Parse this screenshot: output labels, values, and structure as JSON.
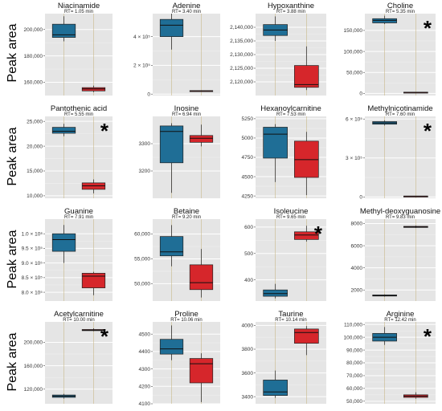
{
  "ylabel": "Peak area",
  "colors": {
    "group1": "#1f6e96",
    "group2": "#d6262b",
    "panel_bg": "#e5e5e5",
    "grid": "#ffffff",
    "grid_minor": "#efefef",
    "vgrid": "#c9b98a"
  },
  "chart_data": [
    {
      "type": "box",
      "title": "Niacinamide",
      "subtitle": "RT= 1.05 min",
      "ylabel": "Peak area",
      "ylim": [
        150000,
        212000
      ],
      "ticks": [
        {
          "v": 160000,
          "label": "160,000"
        },
        {
          "v": 180000,
          "label": "180,000"
        },
        {
          "v": 200000,
          "label": "200,000"
        }
      ],
      "significant": false,
      "star": "",
      "boxes": [
        {
          "min": 191000,
          "q1": 194000,
          "median": 196000,
          "q3": 204000,
          "max": 210000
        },
        {
          "min": 152500,
          "q1": 153500,
          "median": 155000,
          "q3": 156000,
          "max": 157500
        }
      ]
    },
    {
      "type": "box",
      "title": "Adenine",
      "subtitle": "RT= 3.40 min",
      "ylabel": "Peak area",
      "ylim": [
        -10000,
        560000
      ],
      "ticks": [
        {
          "v": 0,
          "label": "0"
        },
        {
          "v": 200000,
          "label": "2 × 10⁵"
        },
        {
          "v": 400000,
          "label": "4 × 10⁵"
        }
      ],
      "significant": false,
      "star": "",
      "boxes": [
        {
          "min": 310000,
          "q1": 400000,
          "median": 480000,
          "q3": 520000,
          "max": 560000
        },
        {
          "min": 18000,
          "q1": 20000,
          "median": 22000,
          "q3": 24000,
          "max": 26000
        }
      ]
    },
    {
      "type": "box",
      "title": "Hypoxanthine",
      "subtitle": "RT= 3.88 min",
      "ylabel": "Peak area",
      "ylim": [
        2115000,
        2145000
      ],
      "ticks": [
        {
          "v": 2120000,
          "label": "2,120,000"
        },
        {
          "v": 2125000,
          "label": "2,125,000"
        },
        {
          "v": 2130000,
          "label": "2,130,000"
        },
        {
          "v": 2135000,
          "label": "2,135,000"
        },
        {
          "v": 2140000,
          "label": "2,140,000"
        }
      ],
      "significant": false,
      "star": "",
      "boxes": [
        {
          "min": 2135000,
          "q1": 2137000,
          "median": 2139000,
          "q3": 2141000,
          "max": 2144000
        },
        {
          "min": 2117000,
          "q1": 2118000,
          "median": 2119000,
          "q3": 2126000,
          "max": 2133000
        }
      ]
    },
    {
      "type": "box",
      "title": "Choline",
      "subtitle": "RT= 5.35 min",
      "ylabel": "Peak area",
      "ylim": [
        -5000,
        190000
      ],
      "ticks": [
        {
          "v": 0,
          "label": "0"
        },
        {
          "v": 50000,
          "label": "50,000"
        },
        {
          "v": 100000,
          "label": "100,000"
        },
        {
          "v": 150000,
          "label": "150,000"
        }
      ],
      "significant": true,
      "star": "*",
      "boxes": [
        {
          "min": 165000,
          "q1": 168000,
          "median": 174000,
          "q3": 178000,
          "max": 185000
        },
        {
          "min": 1500,
          "q1": 2000,
          "median": 2500,
          "q3": 3000,
          "max": 3500
        }
      ]
    },
    {
      "type": "box",
      "title": "Pantothenic acid",
      "subtitle": "RT= 5.55 min",
      "ylabel": "Peak area",
      "ylim": [
        9500,
        26000
      ],
      "ticks": [
        {
          "v": 10000,
          "label": "10,000"
        },
        {
          "v": 15000,
          "label": "15,000"
        },
        {
          "v": 20000,
          "label": "20,000"
        },
        {
          "v": 25000,
          "label": "25,000"
        }
      ],
      "significant": true,
      "star": "*",
      "boxes": [
        {
          "min": 22000,
          "q1": 22600,
          "median": 23000,
          "q3": 23800,
          "max": 24500
        },
        {
          "min": 10500,
          "q1": 11300,
          "median": 12000,
          "q3": 12600,
          "max": 13300
        }
      ]
    },
    {
      "type": "box",
      "title": "Inosine",
      "subtitle": "RT= 6.94 min",
      "ylabel": "Peak area",
      "ylim": [
        3100,
        3400
      ],
      "ticks": [
        {
          "v": 3200,
          "label": "3200"
        },
        {
          "v": 3300,
          "label": "3300"
        }
      ],
      "significant": false,
      "star": "",
      "boxes": [
        {
          "min": 3120,
          "q1": 3230,
          "median": 3345,
          "q3": 3365,
          "max": 3375
        },
        {
          "min": 3290,
          "q1": 3305,
          "median": 3320,
          "q3": 3330,
          "max": 3370
        }
      ]
    },
    {
      "type": "box",
      "title": "Hexanoylcarnitine",
      "subtitle": "RT= 7.53 min",
      "ylabel": "Peak area",
      "ylim": [
        4220,
        5280
      ],
      "ticks": [
        {
          "v": 4250,
          "label": "4250"
        },
        {
          "v": 4500,
          "label": "4500"
        },
        {
          "v": 4750,
          "label": "4750"
        },
        {
          "v": 5000,
          "label": "5000"
        },
        {
          "v": 5250,
          "label": "5250"
        }
      ],
      "significant": false,
      "star": "",
      "boxes": [
        {
          "min": 4430,
          "q1": 4740,
          "median": 5050,
          "q3": 5140,
          "max": 5180
        },
        {
          "min": 4260,
          "q1": 4490,
          "median": 4720,
          "q3": 4960,
          "max": 5080
        }
      ]
    },
    {
      "type": "box",
      "title": "Methylnicotinamide",
      "subtitle": "RT= 7.60 min",
      "ylabel": "Peak area",
      "ylim": [
        -10000,
        620000
      ],
      "ticks": [
        {
          "v": 0,
          "label": "0"
        },
        {
          "v": 300000,
          "label": "3 × 10⁵"
        },
        {
          "v": 600000,
          "label": "6 × 10⁵"
        }
      ],
      "significant": true,
      "star": "*",
      "boxes": [
        {
          "min": 550000,
          "q1": 560000,
          "median": 570000,
          "q3": 580000,
          "max": 590000
        },
        {
          "min": 4000,
          "q1": 5000,
          "median": 6000,
          "q3": 7000,
          "max": 8000
        }
      ]
    },
    {
      "type": "box",
      "title": "Guanine",
      "subtitle": "RT= 7.91 min",
      "ylabel": "Peak area",
      "ylim": [
        770000,
        1050000
      ],
      "ticks": [
        {
          "v": 800000,
          "label": "8.0 × 10⁵"
        },
        {
          "v": 850000,
          "label": "8.5 × 10⁵"
        },
        {
          "v": 900000,
          "label": "9.0 × 10⁵"
        },
        {
          "v": 950000,
          "label": "9.5 × 10⁵"
        },
        {
          "v": 1000000,
          "label": "1.0 × 10⁶"
        }
      ],
      "significant": false,
      "star": "",
      "boxes": [
        {
          "min": 900000,
          "q1": 940000,
          "median": 980000,
          "q3": 1000000,
          "max": 1030000
        },
        {
          "min": 790000,
          "q1": 815000,
          "median": 855000,
          "q3": 865000,
          "max": 870000
        }
      ]
    },
    {
      "type": "box",
      "title": "Betaine",
      "subtitle": "RT= 9.20 min",
      "ylabel": "Peak area",
      "ylim": [
        46500,
        63000
      ],
      "ticks": [
        {
          "v": 50000,
          "label": "50,000"
        },
        {
          "v": 55000,
          "label": "55,000"
        },
        {
          "v": 60000,
          "label": "60,000"
        }
      ],
      "significant": false,
      "star": "",
      "boxes": [
        {
          "min": 53500,
          "q1": 55600,
          "median": 56400,
          "q3": 59500,
          "max": 61800
        },
        {
          "min": 47200,
          "q1": 48800,
          "median": 50200,
          "q3": 53800,
          "max": 57000
        }
      ]
    },
    {
      "type": "box",
      "title": "Isoleucine",
      "subtitle": "RT= 9.65 min",
      "ylabel": "Peak area",
      "ylim": [
        320,
        630
      ],
      "ticks": [
        {
          "v": 400,
          "label": "400"
        },
        {
          "v": 500,
          "label": "500"
        },
        {
          "v": 600,
          "label": "600"
        }
      ],
      "significant": true,
      "star": "*",
      "boxes": [
        {
          "min": 330,
          "q1": 338,
          "median": 348,
          "q3": 362,
          "max": 385
        },
        {
          "min": 545,
          "q1": 553,
          "median": 570,
          "q3": 582,
          "max": 605
        }
      ]
    },
    {
      "type": "box",
      "title": "Methyl-deoxyguanosine",
      "subtitle": "RT= 9.83 min",
      "ylabel": "Peak area",
      "ylim": [
        1000,
        8400
      ],
      "ticks": [
        {
          "v": 2000,
          "label": "2000"
        },
        {
          "v": 4000,
          "label": "4000"
        },
        {
          "v": 6000,
          "label": "6000"
        },
        {
          "v": 8000,
          "label": "8000"
        }
      ],
      "significant": false,
      "star": "",
      "boxes": [
        {
          "min": 1400,
          "q1": 1450,
          "median": 1500,
          "q3": 1550,
          "max": 1600
        },
        {
          "min": 7600,
          "q1": 7650,
          "median": 7700,
          "q3": 7750,
          "max": 7820
        }
      ]
    },
    {
      "type": "box",
      "title": "Acetylcarnitine",
      "subtitle": "RT= 10.00 min",
      "ylabel": "Peak area",
      "ylim": [
        95000,
        235000
      ],
      "ticks": [
        {
          "v": 120000,
          "label": "120,000"
        },
        {
          "v": 160000,
          "label": "160,000"
        },
        {
          "v": 200000,
          "label": "200,000"
        }
      ],
      "significant": true,
      "star": "*",
      "boxes": [
        {
          "min": 104000,
          "q1": 106000,
          "median": 108000,
          "q3": 110000,
          "max": 112000
        },
        {
          "min": 219000,
          "q1": 220000,
          "median": 221000,
          "q3": 222000,
          "max": 224000
        }
      ]
    },
    {
      "type": "box",
      "title": "Proline",
      "subtitle": "RT= 10.06 min",
      "ylabel": "Peak area",
      "ylim": [
        4100,
        4570
      ],
      "ticks": [
        {
          "v": 4100,
          "label": "4100"
        },
        {
          "v": 4200,
          "label": "4200"
        },
        {
          "v": 4300,
          "label": "4300"
        },
        {
          "v": 4400,
          "label": "4400"
        },
        {
          "v": 4500,
          "label": "4500"
        }
      ],
      "significant": false,
      "star": "",
      "boxes": [
        {
          "min": 4350,
          "q1": 4385,
          "median": 4415,
          "q3": 4470,
          "max": 4550
        },
        {
          "min": 4110,
          "q1": 4220,
          "median": 4330,
          "q3": 4360,
          "max": 4390
        }
      ]
    },
    {
      "type": "box",
      "title": "Taurine",
      "subtitle": "RT= 10.14 min",
      "ylabel": "Peak area",
      "ylim": [
        3340,
        4030
      ],
      "ticks": [
        {
          "v": 3400,
          "label": "3400"
        },
        {
          "v": 3600,
          "label": "3600"
        },
        {
          "v": 3800,
          "label": "3800"
        },
        {
          "v": 4000,
          "label": "4000"
        }
      ],
      "significant": false,
      "star": "",
      "boxes": [
        {
          "min": 3390,
          "q1": 3410,
          "median": 3440,
          "q3": 3540,
          "max": 3620
        },
        {
          "min": 3750,
          "q1": 3850,
          "median": 3940,
          "q3": 3970,
          "max": 3995
        }
      ]
    },
    {
      "type": "box",
      "title": "Arginine",
      "subtitle": "RT= 12.42 min",
      "ylabel": "Peak area",
      "ylim": [
        48000,
        112000
      ],
      "ticks": [
        {
          "v": 50000,
          "label": "50,000"
        },
        {
          "v": 60000,
          "label": "60,000"
        },
        {
          "v": 70000,
          "label": "70,000"
        },
        {
          "v": 80000,
          "label": "80,000"
        },
        {
          "v": 90000,
          "label": "90,000"
        },
        {
          "v": 100000,
          "label": "100,000"
        },
        {
          "v": 110000,
          "label": "110,000"
        }
      ],
      "significant": true,
      "star": "*",
      "boxes": [
        {
          "min": 94000,
          "q1": 97000,
          "median": 100000,
          "q3": 103000,
          "max": 108000
        },
        {
          "min": 52000,
          "q1": 53000,
          "median": 54000,
          "q3": 55000,
          "max": 57000
        }
      ]
    }
  ]
}
